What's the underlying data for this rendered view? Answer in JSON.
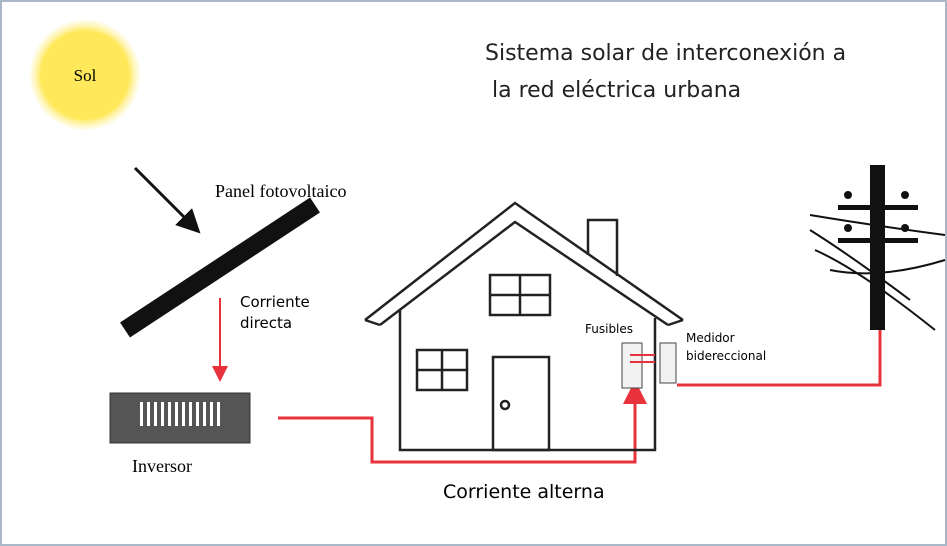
{
  "title": [
    "Sistema solar de interconexión a",
    "la red eléctrica urbana"
  ],
  "nodes": [
    {
      "label": "Sol"
    },
    {
      "label": "Panel fotovoltaico"
    },
    {
      "label": "Inversor"
    },
    {
      "label": "Fusibles"
    },
    {
      "label": [
        "Medidor",
        "bidereccional"
      ]
    }
  ],
  "edges": [
    {
      "label": [
        "Corriente",
        "directa"
      ]
    },
    {
      "label": "Corriente alterna"
    }
  ]
}
